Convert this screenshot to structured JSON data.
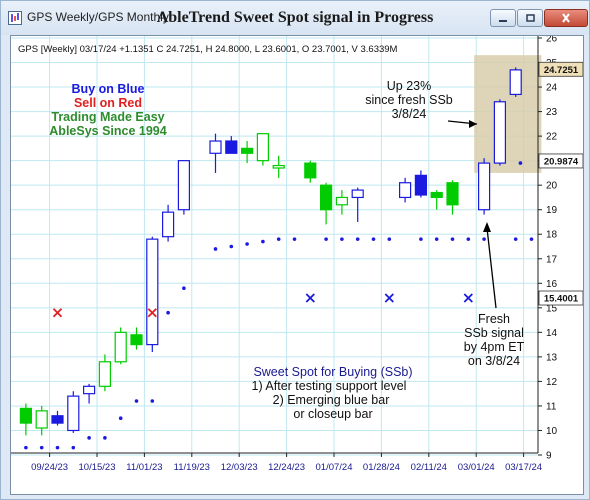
{
  "window": {
    "tabs_label": "GPS Weekly/GPS Monthly",
    "title": "AbleTrend Sweet Spot signal in Progress"
  },
  "chart_data": {
    "type": "candlestick",
    "info_line": "GPS [Weekly] 03/17/24 +1.1351 C 24.7251, H 24.8000, L 23.6001, O 23.7001, V 3.6339M",
    "ylim": [
      9,
      26
    ],
    "y_ticks": [
      9,
      10,
      11,
      12,
      13,
      14,
      15,
      16,
      17,
      18,
      19,
      20,
      21,
      22,
      23,
      24,
      25,
      26
    ],
    "x_tick_labels": [
      "09/24/23",
      "10/15/23",
      "11/01/23",
      "11/19/23",
      "12/03/23",
      "12/24/23",
      "01/07/24",
      "01/28/24",
      "02/11/24",
      "03/01/24",
      "03/17/24"
    ],
    "x_tick_positions": [
      1.5,
      4.5,
      7.5,
      10.5,
      13.5,
      16.5,
      19.5,
      22.5,
      25.5,
      28.5,
      31.5
    ],
    "price_labels": [
      {
        "value": 24.7251,
        "text": "24.7251",
        "bg": "#f0e0b8"
      },
      {
        "value": 20.9874,
        "text": "20.9874",
        "bg": "#ffffff"
      },
      {
        "value": 15.4001,
        "text": "15.4001",
        "bg": "#ffffff"
      }
    ],
    "colors": {
      "blue": "#1a1ae0",
      "red": "#e02020",
      "green": "#00cc00",
      "grid": "#bfe8f0",
      "highlight": "#d8ccaa"
    },
    "bars": [
      {
        "o": 10.3,
        "h": 11.1,
        "l": 9.8,
        "c": 10.9,
        "col": "green",
        "fill": true
      },
      {
        "o": 10.1,
        "h": 11.0,
        "l": 9.8,
        "c": 10.8,
        "col": "green",
        "fill": false
      },
      {
        "o": 10.6,
        "h": 10.8,
        "l": 10.2,
        "c": 10.3,
        "col": "blue",
        "fill": true
      },
      {
        "o": 10.0,
        "h": 11.6,
        "l": 9.9,
        "c": 11.4,
        "col": "blue",
        "fill": false
      },
      {
        "o": 11.5,
        "h": 11.9,
        "l": 11.1,
        "c": 11.8,
        "col": "blue",
        "fill": false
      },
      {
        "o": 11.8,
        "h": 13.1,
        "l": 11.6,
        "c": 12.8,
        "col": "green",
        "fill": false
      },
      {
        "o": 12.8,
        "h": 14.2,
        "l": 12.7,
        "c": 14.0,
        "col": "green",
        "fill": false
      },
      {
        "o": 13.9,
        "h": 14.2,
        "l": 13.3,
        "c": 13.5,
        "col": "green",
        "fill": true
      },
      {
        "o": 13.5,
        "h": 17.9,
        "l": 13.2,
        "c": 17.8,
        "col": "blue",
        "fill": false
      },
      {
        "o": 17.9,
        "h": 19.2,
        "l": 17.7,
        "c": 18.9,
        "col": "blue",
        "fill": false
      },
      {
        "o": 19.0,
        "h": 21.0,
        "l": 18.8,
        "c": 21.0,
        "col": "blue",
        "fill": false
      },
      {
        "o": null,
        "h": null,
        "l": null,
        "c": null,
        "col": "none",
        "fill": false
      },
      {
        "o": 21.3,
        "h": 22.1,
        "l": 20.5,
        "c": 21.8,
        "col": "blue",
        "fill": false
      },
      {
        "o": 21.8,
        "h": 22.0,
        "l": 21.3,
        "c": 21.3,
        "col": "blue",
        "fill": true
      },
      {
        "o": 21.5,
        "h": 21.8,
        "l": 20.9,
        "c": 21.3,
        "col": "green",
        "fill": true
      },
      {
        "o": 21.0,
        "h": 22.1,
        "l": 20.8,
        "c": 22.1,
        "col": "green",
        "fill": false
      },
      {
        "o": 20.8,
        "h": 21.2,
        "l": 20.3,
        "c": 20.7,
        "col": "green",
        "fill": false
      },
      {
        "o": null,
        "h": null,
        "l": null,
        "c": null,
        "col": "none",
        "fill": false
      },
      {
        "o": 20.9,
        "h": 21.0,
        "l": 20.1,
        "c": 20.3,
        "col": "green",
        "fill": true
      },
      {
        "o": 20.0,
        "h": 20.1,
        "l": 18.4,
        "c": 19.0,
        "col": "green",
        "fill": true
      },
      {
        "o": 19.2,
        "h": 19.8,
        "l": 18.8,
        "c": 19.5,
        "col": "green",
        "fill": false
      },
      {
        "o": 19.5,
        "h": 19.9,
        "l": 18.5,
        "c": 19.8,
        "col": "blue",
        "fill": false
      },
      {
        "o": null,
        "h": null,
        "l": null,
        "c": null,
        "col": "none",
        "fill": false
      },
      {
        "o": null,
        "h": null,
        "l": null,
        "c": null,
        "col": "none",
        "fill": false
      },
      {
        "o": 19.5,
        "h": 20.3,
        "l": 19.3,
        "c": 20.1,
        "col": "blue",
        "fill": false
      },
      {
        "o": 19.6,
        "h": 20.6,
        "l": 19.5,
        "c": 20.4,
        "col": "blue",
        "fill": true
      },
      {
        "o": 19.7,
        "h": 19.8,
        "l": 19.0,
        "c": 19.5,
        "col": "green",
        "fill": true
      },
      {
        "o": 19.2,
        "h": 20.2,
        "l": 18.8,
        "c": 20.1,
        "col": "green",
        "fill": true
      },
      {
        "o": null,
        "h": null,
        "l": null,
        "c": null,
        "col": "none",
        "fill": false
      },
      {
        "o": 19.0,
        "h": 21.1,
        "l": 18.8,
        "c": 20.9,
        "col": "blue",
        "fill": false
      },
      {
        "o": 20.9,
        "h": 23.5,
        "l": 20.8,
        "c": 23.4,
        "col": "blue",
        "fill": false
      },
      {
        "o": 23.7,
        "h": 24.8,
        "l": 23.6,
        "c": 24.7,
        "col": "blue",
        "fill": false
      }
    ],
    "dots": [
      [
        0,
        9.3
      ],
      [
        1,
        9.3
      ],
      [
        2,
        9.3
      ],
      [
        3,
        9.3
      ],
      [
        4,
        9.7
      ],
      [
        5,
        9.7
      ],
      [
        6,
        10.5
      ],
      [
        7,
        11.2
      ],
      [
        8,
        11.2
      ],
      [
        9,
        14.8
      ],
      [
        10,
        15.8
      ],
      [
        12,
        17.4
      ],
      [
        13,
        17.5
      ],
      [
        14,
        17.6
      ],
      [
        15,
        17.7
      ],
      [
        16,
        17.8
      ],
      [
        17,
        17.8
      ],
      [
        19,
        17.8
      ],
      [
        20,
        17.8
      ],
      [
        21,
        17.8
      ],
      [
        22,
        17.8
      ],
      [
        23,
        17.8
      ],
      [
        25,
        17.8
      ],
      [
        26,
        17.8
      ],
      [
        27,
        17.8
      ],
      [
        28,
        17.8
      ],
      [
        29,
        17.8
      ],
      [
        31,
        17.8
      ],
      [
        32,
        17.8
      ],
      [
        31.3,
        20.9
      ]
    ],
    "red_x": [
      [
        2,
        14.8
      ],
      [
        8,
        14.8
      ]
    ],
    "blue_x": [
      [
        18,
        15.4
      ],
      [
        23,
        15.4
      ],
      [
        28,
        15.4
      ]
    ],
    "highlight": {
      "from_bar": 28.5,
      "to_bar": 32.5,
      "y_low": 20.5,
      "y_high": 25.3
    },
    "annotations": {
      "legend_lines": [
        {
          "text": "Buy on Blue",
          "color": "#1a1ae0"
        },
        {
          "text": "Sell on Red",
          "color": "#e02020"
        },
        {
          "text": "Trading Made Easy",
          "color": "#2e8b2e"
        },
        {
          "text": "AbleSys Since 1994",
          "color": "#2e8b2e"
        }
      ],
      "up_lines": [
        "Up 23%",
        "since fresh SSb",
        "3/8/24"
      ],
      "fresh_lines": [
        "Fresh",
        "SSb signal",
        "by 4pm ET",
        "on 3/8/24"
      ],
      "sweet_lines": [
        "Sweet Spot for Buying (SSb)",
        "1) After testing support level",
        "2) Emerging blue bar",
        "or closeup bar"
      ]
    }
  }
}
